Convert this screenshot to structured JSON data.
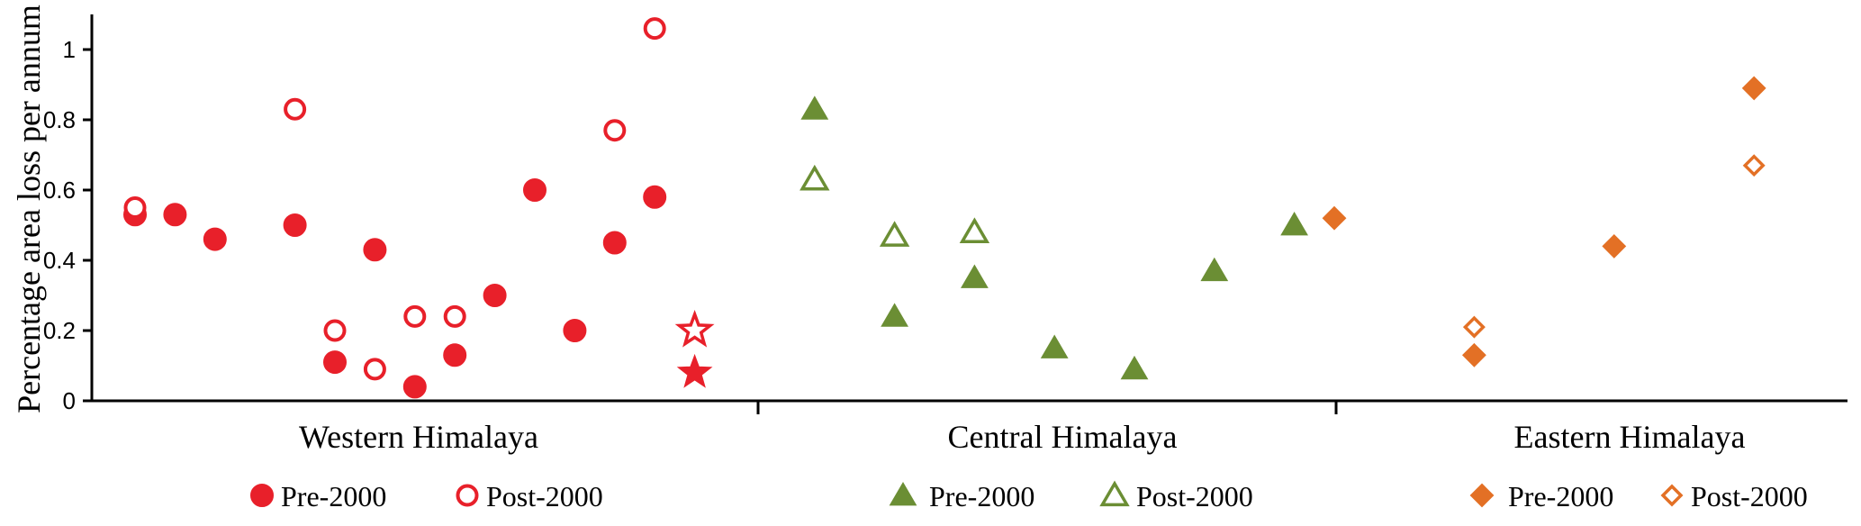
{
  "chart_data": {
    "type": "scatter",
    "ylabel": "Percentage area loss per annum",
    "ylim": [
      0,
      1.1
    ],
    "yticks": [
      0,
      0.2,
      0.4,
      0.6,
      0.8,
      1
    ],
    "ytick_labels": [
      "0",
      "0.2",
      "0.4",
      "0.6",
      "0.8",
      "1"
    ],
    "regions": [
      {
        "name": "Western Himalaya",
        "color": "#e8202a",
        "legend": [
          {
            "label": "Pre-2000",
            "marker": "circle",
            "filled": true
          },
          {
            "label": "Post-2000",
            "marker": "circle",
            "filled": false
          }
        ],
        "points": [
          {
            "x": 1,
            "y": 0.53,
            "marker": "circle",
            "filled": true
          },
          {
            "x": 1,
            "y": 0.55,
            "marker": "circle",
            "filled": false
          },
          {
            "x": 2,
            "y": 0.53,
            "marker": "circle",
            "filled": true
          },
          {
            "x": 3,
            "y": 0.46,
            "marker": "circle",
            "filled": true
          },
          {
            "x": 5,
            "y": 0.5,
            "marker": "circle",
            "filled": true
          },
          {
            "x": 5,
            "y": 0.83,
            "marker": "circle",
            "filled": false
          },
          {
            "x": 6,
            "y": 0.11,
            "marker": "circle",
            "filled": true
          },
          {
            "x": 6,
            "y": 0.2,
            "marker": "circle",
            "filled": false
          },
          {
            "x": 7,
            "y": 0.43,
            "marker": "circle",
            "filled": true
          },
          {
            "x": 7,
            "y": 0.09,
            "marker": "circle",
            "filled": false
          },
          {
            "x": 8,
            "y": 0.04,
            "marker": "circle",
            "filled": true
          },
          {
            "x": 8,
            "y": 0.24,
            "marker": "circle",
            "filled": false
          },
          {
            "x": 9,
            "y": 0.13,
            "marker": "circle",
            "filled": true
          },
          {
            "x": 9,
            "y": 0.24,
            "marker": "circle",
            "filled": false
          },
          {
            "x": 10,
            "y": 0.3,
            "marker": "circle",
            "filled": true
          },
          {
            "x": 11,
            "y": 0.6,
            "marker": "circle",
            "filled": true
          },
          {
            "x": 12,
            "y": 0.2,
            "marker": "circle",
            "filled": true
          },
          {
            "x": 13,
            "y": 0.45,
            "marker": "circle",
            "filled": true
          },
          {
            "x": 13,
            "y": 0.77,
            "marker": "circle",
            "filled": false
          },
          {
            "x": 14,
            "y": 0.58,
            "marker": "circle",
            "filled": true
          },
          {
            "x": 14,
            "y": 1.06,
            "marker": "circle",
            "filled": false
          },
          {
            "x": 15,
            "y": 0.08,
            "marker": "star",
            "filled": true
          },
          {
            "x": 15,
            "y": 0.2,
            "marker": "star",
            "filled": false
          }
        ]
      },
      {
        "name": "Central Himalaya",
        "color": "#6b8e34",
        "legend": [
          {
            "label": "Pre-2000",
            "marker": "triangle",
            "filled": true
          },
          {
            "label": "Post-2000",
            "marker": "triangle",
            "filled": false
          }
        ],
        "points": [
          {
            "x": 18,
            "y": 0.83,
            "marker": "triangle",
            "filled": true
          },
          {
            "x": 18,
            "y": 0.63,
            "marker": "triangle",
            "filled": false
          },
          {
            "x": 20,
            "y": 0.24,
            "marker": "triangle",
            "filled": true
          },
          {
            "x": 20,
            "y": 0.47,
            "marker": "triangle",
            "filled": false
          },
          {
            "x": 22,
            "y": 0.35,
            "marker": "triangle",
            "filled": true
          },
          {
            "x": 22,
            "y": 0.48,
            "marker": "triangle",
            "filled": false
          },
          {
            "x": 24,
            "y": 0.15,
            "marker": "triangle",
            "filled": true
          },
          {
            "x": 26,
            "y": 0.09,
            "marker": "triangle",
            "filled": true
          },
          {
            "x": 28,
            "y": 0.37,
            "marker": "triangle",
            "filled": true
          },
          {
            "x": 30,
            "y": 0.5,
            "marker": "triangle",
            "filled": true
          }
        ]
      },
      {
        "name": "Eastern Himalaya",
        "color": "#e37025",
        "legend": [
          {
            "label": "Pre-2000",
            "marker": "diamond",
            "filled": true
          },
          {
            "label": "Post-2000",
            "marker": "diamond",
            "filled": false
          }
        ],
        "points": [
          {
            "x": 31,
            "y": 0.52,
            "marker": "diamond",
            "filled": true
          },
          {
            "x": 34.5,
            "y": 0.13,
            "marker": "diamond",
            "filled": true
          },
          {
            "x": 34.5,
            "y": 0.21,
            "marker": "diamond",
            "filled": false
          },
          {
            "x": 38,
            "y": 0.44,
            "marker": "diamond",
            "filled": true
          },
          {
            "x": 41.5,
            "y": 0.89,
            "marker": "diamond",
            "filled": true
          },
          {
            "x": 41.5,
            "y": 0.67,
            "marker": "diamond",
            "filled": false
          }
        ]
      }
    ],
    "grid": false,
    "legend_placement": "bottom"
  }
}
